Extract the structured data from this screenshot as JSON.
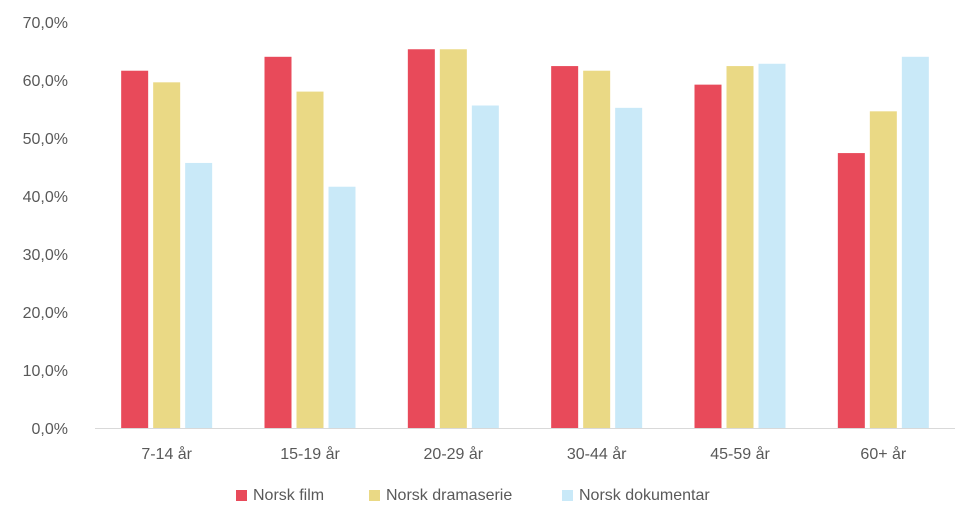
{
  "chart_data": {
    "type": "bar",
    "categories": [
      "7-14 år",
      "15-19 år",
      "20-29 år",
      "30-44 år",
      "45-59 år",
      "60+ år"
    ],
    "series": [
      {
        "name": "Norsk film",
        "color": "#E84A5A",
        "values": [
          61.6,
          64.0,
          65.3,
          62.4,
          59.2,
          47.4
        ]
      },
      {
        "name": "Norsk dramaserie",
        "color": "#EAD985",
        "values": [
          59.6,
          58.0,
          65.3,
          61.6,
          62.4,
          54.6
        ]
      },
      {
        "name": "Norsk dokumentar",
        "color": "#C9E9F8",
        "values": [
          45.7,
          41.6,
          55.6,
          55.2,
          62.8,
          64.0
        ]
      }
    ],
    "ylim": [
      0,
      70
    ],
    "yticks": [
      0,
      10,
      20,
      30,
      40,
      50,
      60,
      70
    ],
    "ytick_labels": [
      "0,0%",
      "10,0%",
      "20,0%",
      "30,0%",
      "40,0%",
      "50,0%",
      "60,0%",
      "70,0%"
    ],
    "title": "",
    "xlabel": "",
    "ylabel": "",
    "grid": false,
    "legend_position": "bottom"
  }
}
